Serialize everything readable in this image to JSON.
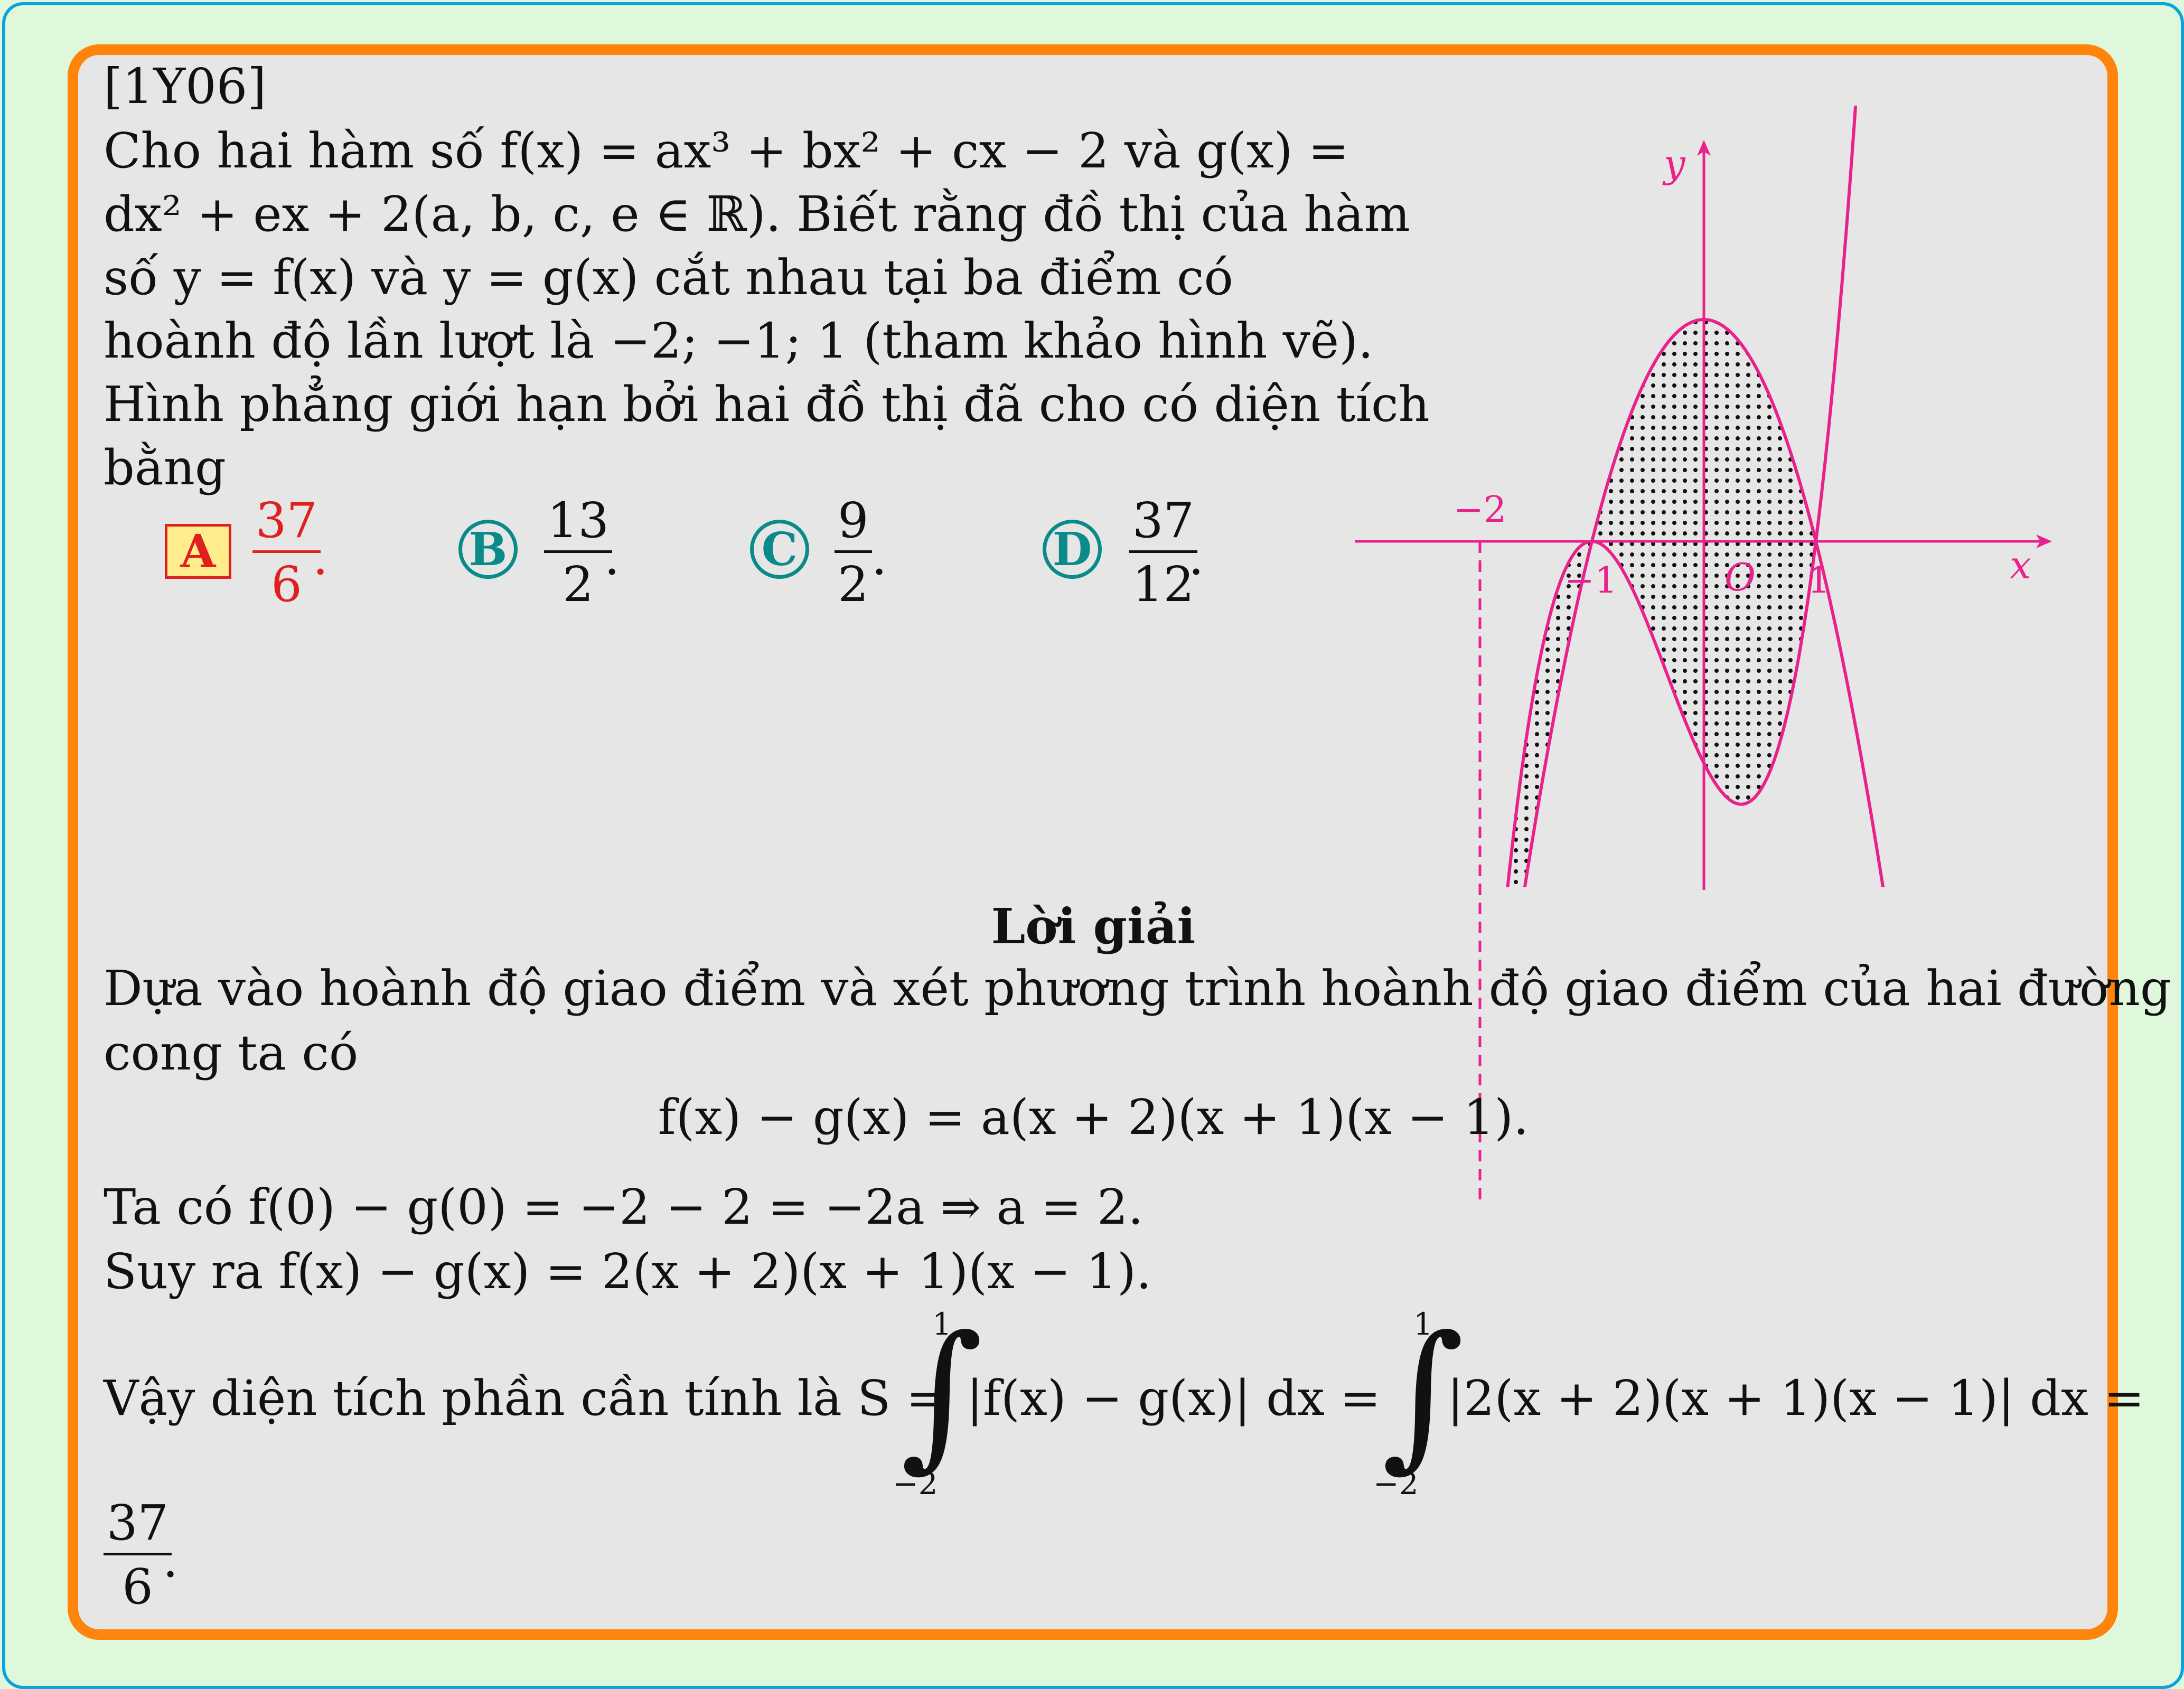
{
  "problem": {
    "id": "[1Y06]",
    "lines": [
      "Cho hai hàm số f(x) = ax³ + bx² + cx − 2 và g(x) =",
      "dx² + ex + 2(a, b, c, e ∈ ℝ). Biết rằng đồ thị của hàm",
      "số  y = f(x)  và  y = g(x)  cắt nhau tại ba điểm có",
      "hoành độ lần lượt là −2; −1; 1 (tham khảo hình vẽ).",
      "Hình phẳng giới hạn bởi hai đồ thị đã cho có diện tích",
      "bằng"
    ]
  },
  "options": [
    {
      "letter": "A",
      "num": "37",
      "den": "6",
      "selected": true
    },
    {
      "letter": "B",
      "num": "13",
      "den": "2",
      "selected": false
    },
    {
      "letter": "C",
      "num": "9",
      "den": "2",
      "selected": false
    },
    {
      "letter": "D",
      "num": "37",
      "den": "12",
      "selected": false
    }
  ],
  "graph": {
    "y_label": "y",
    "x_label": "x",
    "origin_label": "O",
    "tick_labels": [
      "−2",
      "−1",
      "1"
    ],
    "curve_color": "#e8228a"
  },
  "solution": {
    "heading": "Lời giải",
    "line1": "Dựa vào hoành độ giao điểm và xét phương trình hoành độ giao điểm của hai đường",
    "line2": "cong ta có",
    "equation": "f(x) − g(x) = a(x + 2)(x + 1)(x − 1).",
    "line3": "Ta có f(0) − g(0) = −2 − 2 = −2a ⇒ a = 2.",
    "line4": "Suy ra f(x) − g(x) = 2(x + 2)(x + 1)(x − 1).",
    "area_prefix": "Vậy diện tích phần cần tính là S =",
    "integral1_body": "|f(x) − g(x)| dx =",
    "integral2_body": "|2(x + 2)(x + 1)(x − 1)| dx =",
    "upper_limit": "1",
    "lower_limit": "−2",
    "result_num": "37",
    "result_den": "6"
  },
  "colors": {
    "card_border": "#ff840b",
    "outer_border": "#0aa3dd",
    "correct": "#e0201e",
    "option_teal": "#0b8a8a",
    "graph_pink": "#e8228a"
  }
}
